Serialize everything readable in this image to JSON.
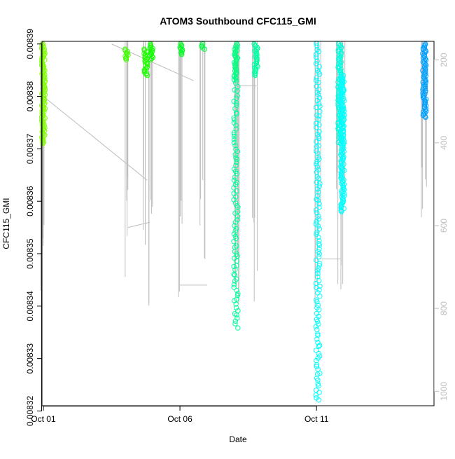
{
  "chart_data": {
    "type": "scatter",
    "title": "ATOM3 Southbound CFC115_GMI",
    "xlabel": "Date",
    "ylabel": "CFC115_GMI",
    "x_ticks": [
      {
        "label": "Oct 01",
        "day": 1
      },
      {
        "label": "Oct 06",
        "day": 6
      },
      {
        "label": "Oct 11",
        "day": 11
      }
    ],
    "xlim_days": [
      0.95,
      15.3
    ],
    "y_ticks": [
      "0.00832",
      "0.00833",
      "0.00834",
      "0.00835",
      "0.00836",
      "0.00837",
      "0.00838",
      "0.00839"
    ],
    "ylim": [
      0.008321,
      0.0083905
    ],
    "right_axis": {
      "ticks": [
        "200",
        "400",
        "600",
        "800",
        "1000"
      ],
      "values": [
        200,
        400,
        600,
        800,
        1000
      ],
      "range": [
        155,
        1035
      ],
      "color": "#bebebe",
      "inverted": true
    },
    "grid": false,
    "legend": "none",
    "line_color": "#bebebe",
    "series": [
      {
        "x": 1.0,
        "y_top": 0.00839,
        "y_bottom": 0.008371,
        "color": "#80ff00",
        "kind": "dense"
      },
      {
        "x": 4.05,
        "y_top": 0.008389,
        "y_bottom": 0.008387,
        "color": "#40ff00",
        "kind": "dense"
      },
      {
        "x": 4.75,
        "y_top": 0.008389,
        "y_bottom": 0.008384,
        "color": "#20ff00",
        "kind": "dense"
      },
      {
        "x": 4.95,
        "y_top": 0.00839,
        "y_bottom": 0.008387,
        "color": "#10ff00",
        "kind": "dense"
      },
      {
        "x": 6.05,
        "y_top": 0.00839,
        "y_bottom": 0.008388,
        "color": "#00ff20",
        "kind": "dense"
      },
      {
        "x": 6.85,
        "y_top": 0.00839,
        "y_bottom": 0.008389,
        "color": "#00ff40",
        "kind": "dense"
      },
      {
        "x": 8.05,
        "y_top": 0.00839,
        "y_bottom": 0.008383,
        "color": "#00ff80",
        "kind": "dense"
      },
      {
        "x": 8.05,
        "y_top": 0.008383,
        "y_bottom": 0.008336,
        "color": "#00ff99",
        "kind": "sparse"
      },
      {
        "x": 8.78,
        "y_top": 0.00839,
        "y_bottom": 0.008384,
        "color": "#00ffa0",
        "kind": "dense"
      },
      {
        "x": 11.05,
        "y_top": 0.00839,
        "y_bottom": 0.008322,
        "color": "#00ffff",
        "kind": "sparse"
      },
      {
        "x": 11.85,
        "y_top": 0.00839,
        "y_bottom": 0.008371,
        "color": "#00ffe0",
        "kind": "dense"
      },
      {
        "x": 11.95,
        "y_top": 0.008384,
        "y_bottom": 0.008358,
        "color": "#00ffff",
        "kind": "dense"
      },
      {
        "x": 14.95,
        "y_top": 0.00839,
        "y_bottom": 0.008376,
        "color": "#00a0ff",
        "kind": "dense"
      }
    ]
  }
}
